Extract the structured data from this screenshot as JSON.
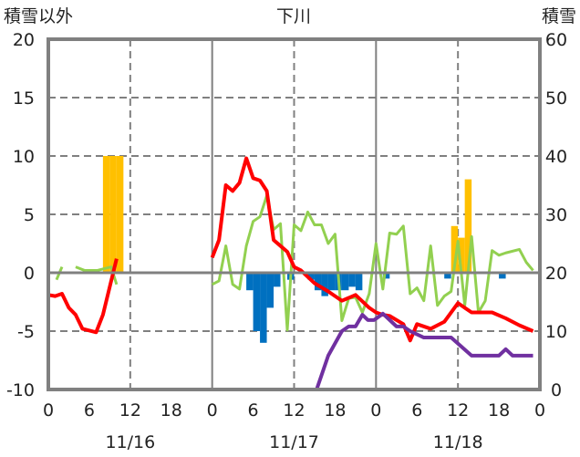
{
  "chart_data": {
    "type": "bar+line",
    "title": "下川",
    "ylabel_left": "積雪以外",
    "ylabel_right": "積雪",
    "ylim_left": [
      -10,
      20
    ],
    "ylim_right": [
      0,
      60
    ],
    "yticks_left": [
      "20",
      "15",
      "10",
      "5",
      "0",
      "-5",
      "-10"
    ],
    "yticks_right": [
      "60",
      "50",
      "40",
      "30",
      "20",
      "10",
      "0"
    ],
    "xlim_hours": [
      0,
      72
    ],
    "xticks": [
      {
        "h": 0,
        "label": "0"
      },
      {
        "h": 6,
        "label": "6"
      },
      {
        "h": 12,
        "label": "12"
      },
      {
        "h": 18,
        "label": "18"
      },
      {
        "h": 24,
        "label": "0"
      },
      {
        "h": 30,
        "label": "6"
      },
      {
        "h": 36,
        "label": "12"
      },
      {
        "h": 42,
        "label": "18"
      },
      {
        "h": 48,
        "label": "0"
      },
      {
        "h": 54,
        "label": "6"
      },
      {
        "h": 60,
        "label": "12"
      },
      {
        "h": 66,
        "label": "18"
      },
      {
        "h": 72,
        "label": "0"
      }
    ],
    "dates": [
      {
        "h": 12,
        "label": "11/16"
      },
      {
        "h": 36,
        "label": "11/17"
      },
      {
        "h": 60,
        "label": "11/18"
      }
    ],
    "colors": {
      "red": "#ff0000",
      "green": "#92d050",
      "purple": "#7030a0",
      "orange": "#ffc000",
      "blue": "#0070c0",
      "axis": "#808080"
    },
    "bars_orange": [
      [
        8,
        10
      ],
      [
        9,
        10
      ],
      [
        10,
        10
      ],
      [
        59,
        4
      ],
      [
        60,
        3
      ],
      [
        61,
        8
      ]
    ],
    "bars_blue": [
      [
        29,
        -1.5
      ],
      [
        30,
        -5
      ],
      [
        31,
        -6
      ],
      [
        32,
        -3
      ],
      [
        33,
        -1.2
      ],
      [
        35,
        -0.6
      ],
      [
        38,
        -0.6
      ],
      [
        39,
        -1.5
      ],
      [
        40,
        -2
      ],
      [
        41,
        -1.5
      ],
      [
        42,
        -1.5
      ],
      [
        43,
        -1.5
      ],
      [
        44,
        -1.2
      ],
      [
        45,
        -1.5
      ],
      [
        49,
        -0.5
      ],
      [
        58,
        -0.5
      ],
      [
        66,
        -0.5
      ]
    ],
    "line_red": [
      [
        [
          0,
          -1.9
        ],
        [
          1,
          -2.0
        ],
        [
          2,
          -1.8
        ],
        [
          3,
          -3.0
        ],
        [
          4,
          -3.6
        ],
        [
          5,
          -4.8
        ],
        [
          7,
          -5.1
        ],
        [
          8,
          -3.6
        ],
        [
          10,
          1.2
        ]
      ],
      [
        [
          24,
          1.3
        ],
        [
          25,
          2.8
        ],
        [
          26,
          7.5
        ],
        [
          27,
          7.0
        ],
        [
          28,
          7.7
        ],
        [
          29,
          9.8
        ],
        [
          30,
          8.1
        ],
        [
          31,
          7.9
        ],
        [
          32,
          7.0
        ],
        [
          33,
          2.8
        ],
        [
          34,
          2.3
        ],
        [
          35,
          1.8
        ],
        [
          36,
          0.5
        ],
        [
          37,
          0.2
        ],
        [
          39,
          -0.9
        ],
        [
          41,
          -1.6
        ],
        [
          43,
          -2.4
        ],
        [
          45,
          -1.9
        ],
        [
          47,
          -3.0
        ],
        [
          48,
          -3.4
        ],
        [
          49,
          -3.6
        ],
        [
          50,
          -3.7
        ],
        [
          52,
          -4.4
        ],
        [
          53,
          -5.8
        ],
        [
          54,
          -4.4
        ],
        [
          56,
          -4.8
        ],
        [
          58,
          -4.2
        ],
        [
          60,
          -2.6
        ],
        [
          62,
          -3.4
        ],
        [
          65,
          -3.4
        ],
        [
          67,
          -3.9
        ],
        [
          69,
          -4.5
        ],
        [
          71,
          -5.0
        ]
      ]
    ],
    "line_green": [
      [
        [
          1.2,
          -0.6
        ],
        [
          2,
          0.5
        ]
      ],
      [
        [
          4,
          0.5
        ],
        [
          5.3,
          0.2
        ],
        [
          7.2,
          0.2
        ],
        [
          9.2,
          0.5
        ],
        [
          10,
          -1.0
        ]
      ],
      [
        [
          24,
          -1.0
        ],
        [
          25,
          -0.7
        ],
        [
          26,
          2.3
        ],
        [
          27,
          -1.0
        ],
        [
          28,
          -1.4
        ],
        [
          29,
          2.3
        ],
        [
          30,
          4.4
        ],
        [
          31,
          4.8
        ],
        [
          32,
          6.6
        ],
        [
          33,
          3.7
        ],
        [
          34,
          4.2
        ],
        [
          35,
          -4.9
        ],
        [
          36,
          4.1
        ],
        [
          37,
          3.6
        ],
        [
          38,
          5.2
        ],
        [
          39,
          4.1
        ],
        [
          40,
          4.1
        ],
        [
          41,
          2.5
        ],
        [
          42,
          3.3
        ],
        [
          43,
          -4.1
        ],
        [
          44,
          -2.2
        ],
        [
          45,
          -2.1
        ],
        [
          46,
          -3.4
        ],
        [
          47,
          -1.8
        ],
        [
          48,
          2.5
        ],
        [
          49,
          -1.4
        ],
        [
          50,
          3.4
        ],
        [
          51,
          3.3
        ],
        [
          52,
          4.0
        ],
        [
          53,
          -1.8
        ],
        [
          54,
          -1.3
        ],
        [
          55,
          -2.4
        ],
        [
          56,
          2.3
        ],
        [
          57,
          -2.8
        ],
        [
          58,
          -2.0
        ],
        [
          59,
          -1.6
        ],
        [
          60,
          2.7
        ],
        [
          61,
          -2.8
        ],
        [
          62,
          3.1
        ],
        [
          63,
          -3.4
        ],
        [
          64,
          -2.4
        ],
        [
          65,
          1.9
        ],
        [
          66,
          1.5
        ],
        [
          67,
          1.7
        ],
        [
          69,
          2.0
        ],
        [
          70,
          0.9
        ],
        [
          71,
          0.2
        ]
      ]
    ],
    "line_purple_right": [
      [
        [
          0,
          0
        ],
        [
          10,
          0
        ]
      ],
      [
        [
          24,
          0
        ],
        [
          39.3,
          0
        ],
        [
          41,
          5.8
        ],
        [
          43,
          10
        ],
        [
          44,
          10.8
        ],
        [
          45,
          10.8
        ],
        [
          46,
          12.8
        ],
        [
          46.8,
          11.9
        ],
        [
          47.7,
          11.9
        ],
        [
          48.8,
          12.8
        ],
        [
          49,
          13
        ],
        [
          51,
          10.8
        ],
        [
          52,
          10.8
        ],
        [
          53,
          10
        ],
        [
          55,
          8.9
        ],
        [
          59,
          8.9
        ],
        [
          62,
          5.8
        ],
        [
          66,
          5.8
        ],
        [
          67,
          6.9
        ],
        [
          68,
          5.8
        ],
        [
          71,
          5.8
        ]
      ]
    ]
  }
}
